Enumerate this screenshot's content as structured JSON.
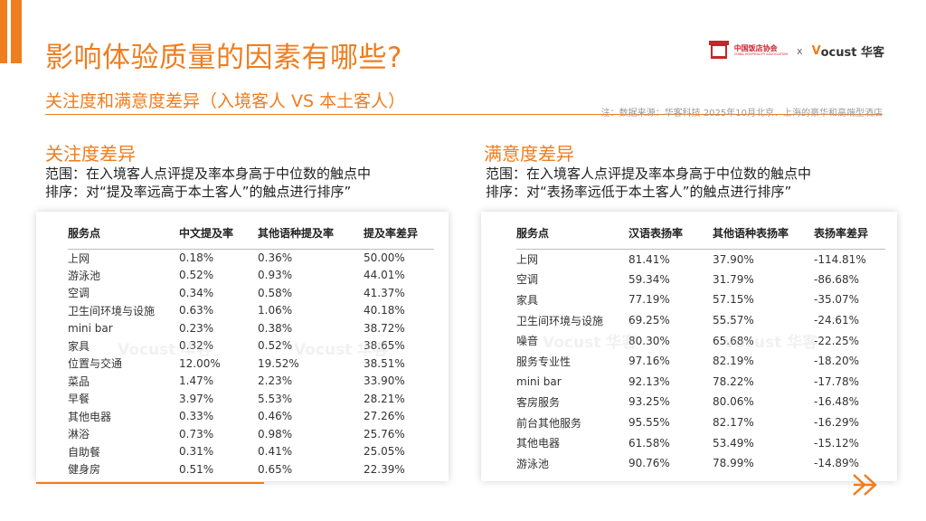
{
  "header": {
    "title": "影响体验质量的因素有哪些?",
    "subtitle": "关注度和满意度差异（入境客人 VS 本土客人）",
    "note": "注：数据来源：华客科技 2025年10月北京、上海的豪华和高端型酒店"
  },
  "logos": {
    "association_cn": "中国饭店协会",
    "association_en": "CHINA HOSPITALITY ASSOCIATION",
    "separator": "x",
    "brand_v": "V",
    "brand_rest": "ocust 华客"
  },
  "watermark": "Vocust 华客",
  "left_section": {
    "title": "关注度差异",
    "scope": "范围：在入境客人点评提及率本身高于中位数的触点中",
    "sort": "排序：对“提及率远高于本土客人”的触点进行排序”",
    "headers": [
      "服务点",
      "中文提及率",
      "其他语种提及率",
      "提及率差异"
    ],
    "rows": [
      [
        "上网",
        "0.18%",
        "0.36%",
        "50.00%"
      ],
      [
        "游泳池",
        "0.52%",
        "0.93%",
        "44.01%"
      ],
      [
        "空调",
        "0.34%",
        "0.58%",
        "41.37%"
      ],
      [
        "卫生间环境与设施",
        "0.63%",
        "1.06%",
        "40.18%"
      ],
      [
        "mini bar",
        "0.23%",
        "0.38%",
        "38.72%"
      ],
      [
        "家具",
        "0.32%",
        "0.52%",
        "38.65%"
      ],
      [
        "位置与交通",
        "12.00%",
        "19.52%",
        "38.51%"
      ],
      [
        "菜品",
        "1.47%",
        "2.23%",
        "33.90%"
      ],
      [
        "早餐",
        "3.97%",
        "5.53%",
        "28.21%"
      ],
      [
        "其他电器",
        "0.33%",
        "0.46%",
        "27.26%"
      ],
      [
        "淋浴",
        "0.73%",
        "0.98%",
        "25.76%"
      ],
      [
        "自助餐",
        "0.31%",
        "0.41%",
        "25.05%"
      ],
      [
        "健身房",
        "0.51%",
        "0.65%",
        "22.39%"
      ]
    ]
  },
  "right_section": {
    "title": "满意度差异",
    "scope": "范围：在入境客人点评提及率本身高于中位数的触点中",
    "sort": "排序：对“表扬率远低于本土客人”的触点进行排序”",
    "headers": [
      "服务点",
      "汉语表扬率",
      "其他语种表扬率",
      "表扬率差异"
    ],
    "rows": [
      [
        "上网",
        "81.41%",
        "37.90%",
        "-114.81%"
      ],
      [
        "空调",
        "59.34%",
        "31.79%",
        "-86.68%"
      ],
      [
        "家具",
        "77.19%",
        "57.15%",
        "-35.07%"
      ],
      [
        "卫生间环境与设施",
        "69.25%",
        "55.57%",
        "-24.61%"
      ],
      [
        "噪音",
        "80.30%",
        "65.68%",
        "-22.25%"
      ],
      [
        "服务专业性",
        "97.16%",
        "82.19%",
        "-18.20%"
      ],
      [
        "mini bar",
        "92.13%",
        "78.22%",
        "-17.78%"
      ],
      [
        "客房服务",
        "93.25%",
        "80.06%",
        "-16.48%"
      ],
      [
        "前台其他服务",
        "95.55%",
        "82.17%",
        "-16.29%"
      ],
      [
        "其他电器",
        "61.58%",
        "53.49%",
        "-15.12%"
      ],
      [
        "游泳池",
        "90.76%",
        "78.99%",
        "-14.89%"
      ]
    ]
  },
  "nav": {
    "next_icon": "double-chevron-right-icon"
  },
  "colors": {
    "accent": "#ef7d1e",
    "association_red": "#c9242b"
  }
}
